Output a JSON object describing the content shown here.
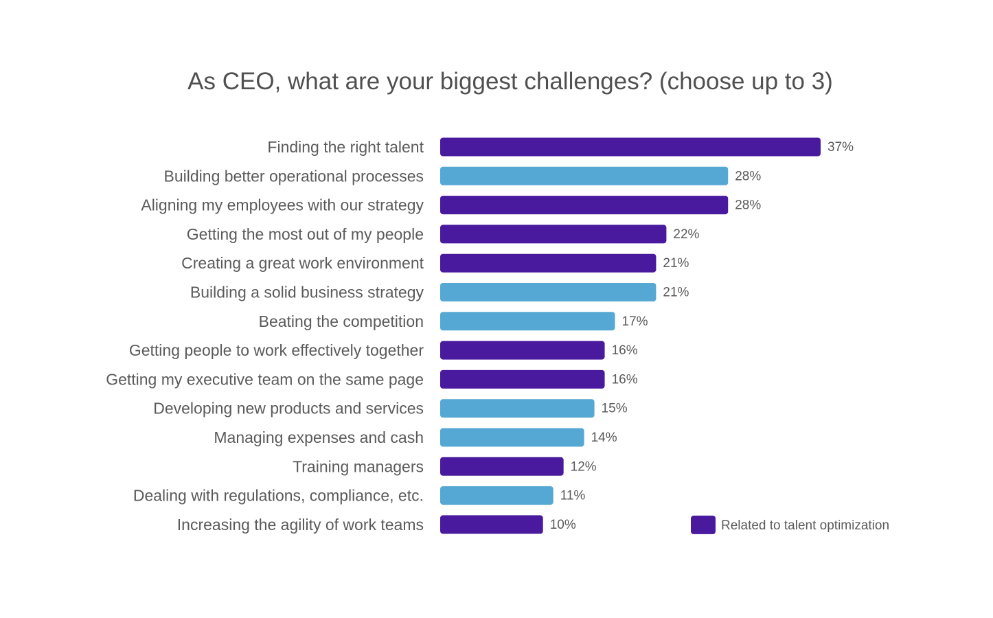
{
  "chart_data": {
    "type": "bar",
    "orientation": "horizontal",
    "title": "As CEO, what are your biggest challenges? (choose up to 3)",
    "categories": [
      "Finding the right talent",
      "Building better operational processes",
      "Aligning my employees with our strategy",
      "Getting the most out of my people",
      "Creating a great work environment",
      "Building a solid business strategy",
      "Beating the competition",
      "Getting people to work effectively together",
      "Getting my executive team on the same page",
      "Developing new products and services",
      "Managing expenses and cash",
      "Training managers",
      "Dealing with regulations, compliance, etc.",
      "Increasing the agility of work teams"
    ],
    "values": [
      37,
      28,
      28,
      22,
      21,
      21,
      17,
      16,
      16,
      15,
      14,
      12,
      11,
      10
    ],
    "value_labels": [
      "37%",
      "28%",
      "28%",
      "22%",
      "21%",
      "21%",
      "17%",
      "16%",
      "16%",
      "15%",
      "14%",
      "12%",
      "11%",
      "10%"
    ],
    "talent_related": [
      true,
      false,
      true,
      true,
      true,
      false,
      false,
      true,
      true,
      false,
      false,
      true,
      false,
      true
    ],
    "unit": "%",
    "xlim": [
      0,
      37
    ],
    "grid": false,
    "legend": {
      "placement": "bottom-right",
      "entries": [
        {
          "label": "Related to talent optimization",
          "color": "#4a1a9e"
        }
      ]
    },
    "colors": {
      "talent": "#4a1a9e",
      "other": "#55a8d3"
    }
  }
}
